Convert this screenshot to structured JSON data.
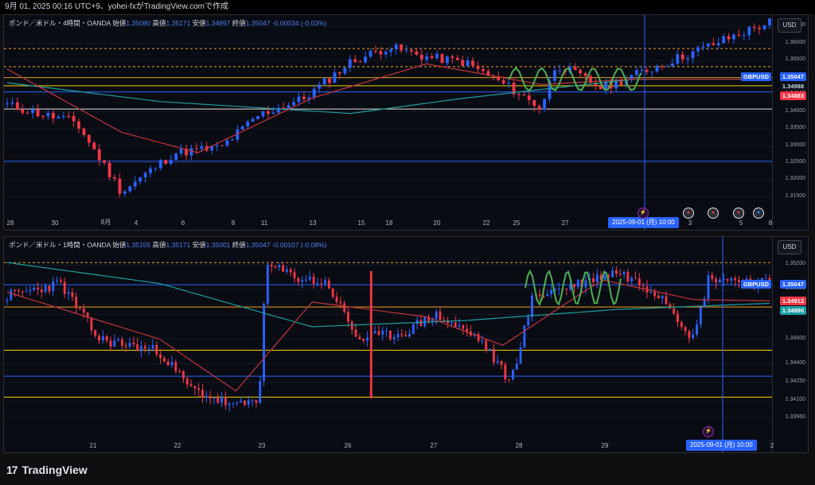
{
  "topbar": {
    "text": "9月 01, 2025 00:16 UTC+9、yohei-fxがTradingView.comで作成"
  },
  "footer": {
    "brand": "TradingView",
    "brand_mark": "17"
  },
  "panes": [
    {
      "id": "pane1",
      "info": {
        "symbol": "ポンド／米ドル・4時間・OANDA",
        "open_label": "始値",
        "open": "1.35080",
        "high_label": "高値",
        "high": "1.35171",
        "low_label": "安値",
        "low": "1.34997",
        "close_label": "終値",
        "close": "1.35047",
        "change": "-0.00034 (-0.03%)"
      },
      "currency_button": "USD",
      "price_ticks": [
        "1.36500",
        "1.36000",
        "1.35500",
        "1.35000",
        "1.34500",
        "1.34000",
        "1.33500",
        "1.33000",
        "1.32500",
        "1.32000",
        "1.31500"
      ],
      "price_tags": {
        "symbol": "GBPUSD",
        "last": "1.35047",
        "ma_cyan": "1.34988",
        "ma_red": "1.34883"
      },
      "x_labels": [
        "28",
        "30",
        "8月",
        "4",
        "6",
        "8",
        "11",
        "13",
        "15",
        "18",
        "20",
        "22",
        "25",
        "27",
        "3",
        "5",
        "8"
      ],
      "cursor_date": "2025-09-01 (月)",
      "cursor_time": "10:00",
      "events": [
        "lightning",
        "us",
        "us",
        "us",
        "uk"
      ],
      "chart_data": {
        "type": "candlestick",
        "timeframe": "4H",
        "ylim": [
          1.3115,
          1.3655
        ],
        "last": 1.35047,
        "horizontal_levels": [
          {
            "value": 1.3585,
            "color": "#f0a020",
            "style": "dashed"
          },
          {
            "value": 1.3532,
            "color": "#f0a020",
            "style": "dashed"
          },
          {
            "value": 1.35,
            "color": "#d4a017",
            "style": "solid"
          },
          {
            "value": 1.3476,
            "color": "#f0d000",
            "style": "solid"
          },
          {
            "value": 1.3458,
            "color": "#2962ff",
            "style": "solid"
          },
          {
            "value": 1.3408,
            "color": "#e0e0e0",
            "style": "solid"
          },
          {
            "value": 1.3255,
            "color": "#2962ff",
            "style": "solid"
          }
        ]
      }
    },
    {
      "id": "pane2",
      "info": {
        "symbol": "ポンド／米ドル・1時間・OANDA",
        "open_label": "始値",
        "open": "1.35155",
        "high_label": "高値",
        "high": "1.35171",
        "low_label": "安値",
        "low": "1.35001",
        "close_label": "終値",
        "close": "1.35047",
        "change": "-0.00107 (-0.08%)"
      },
      "currency_button": "USD",
      "price_ticks": [
        "1.35200",
        "1.35000",
        "1.34800",
        "1.34600",
        "1.34400",
        "1.34250",
        "1.34100",
        "1.33960"
      ],
      "price_tags": {
        "symbol": "GBPUSD",
        "last": "1.35047",
        "ma_red": "1.34913",
        "ma_cyan": "1.34890"
      },
      "x_labels": [
        "21",
        "22",
        "23",
        "26",
        "27",
        "28",
        "29",
        "2"
      ],
      "cursor_date": "2025-09-01 (月)",
      "cursor_time": "10:00",
      "events": [
        "lightning"
      ],
      "chart_data": {
        "type": "candlestick",
        "timeframe": "1H",
        "ylim": [
          1.3385,
          1.3535
        ],
        "last": 1.35047,
        "horizontal_levels": [
          {
            "value": 1.3522,
            "color": "#f0a020",
            "style": "dashed"
          },
          {
            "value": 1.3504,
            "color": "#2962ff",
            "style": "solid"
          },
          {
            "value": 1.3486,
            "color": "#f0a020",
            "style": "solid"
          },
          {
            "value": 1.3451,
            "color": "#f0d000",
            "style": "solid"
          },
          {
            "value": 1.343,
            "color": "#2962ff",
            "style": "solid"
          },
          {
            "value": 1.3413,
            "color": "#f0d000",
            "style": "solid"
          }
        ]
      }
    }
  ],
  "colors": {
    "up": "#2962ff",
    "down": "#f23645",
    "ma_red": "#c2353c",
    "ma_cyan": "#1e9ea0",
    "wave_green": "#4caf50",
    "cursor": "#2962ff"
  }
}
